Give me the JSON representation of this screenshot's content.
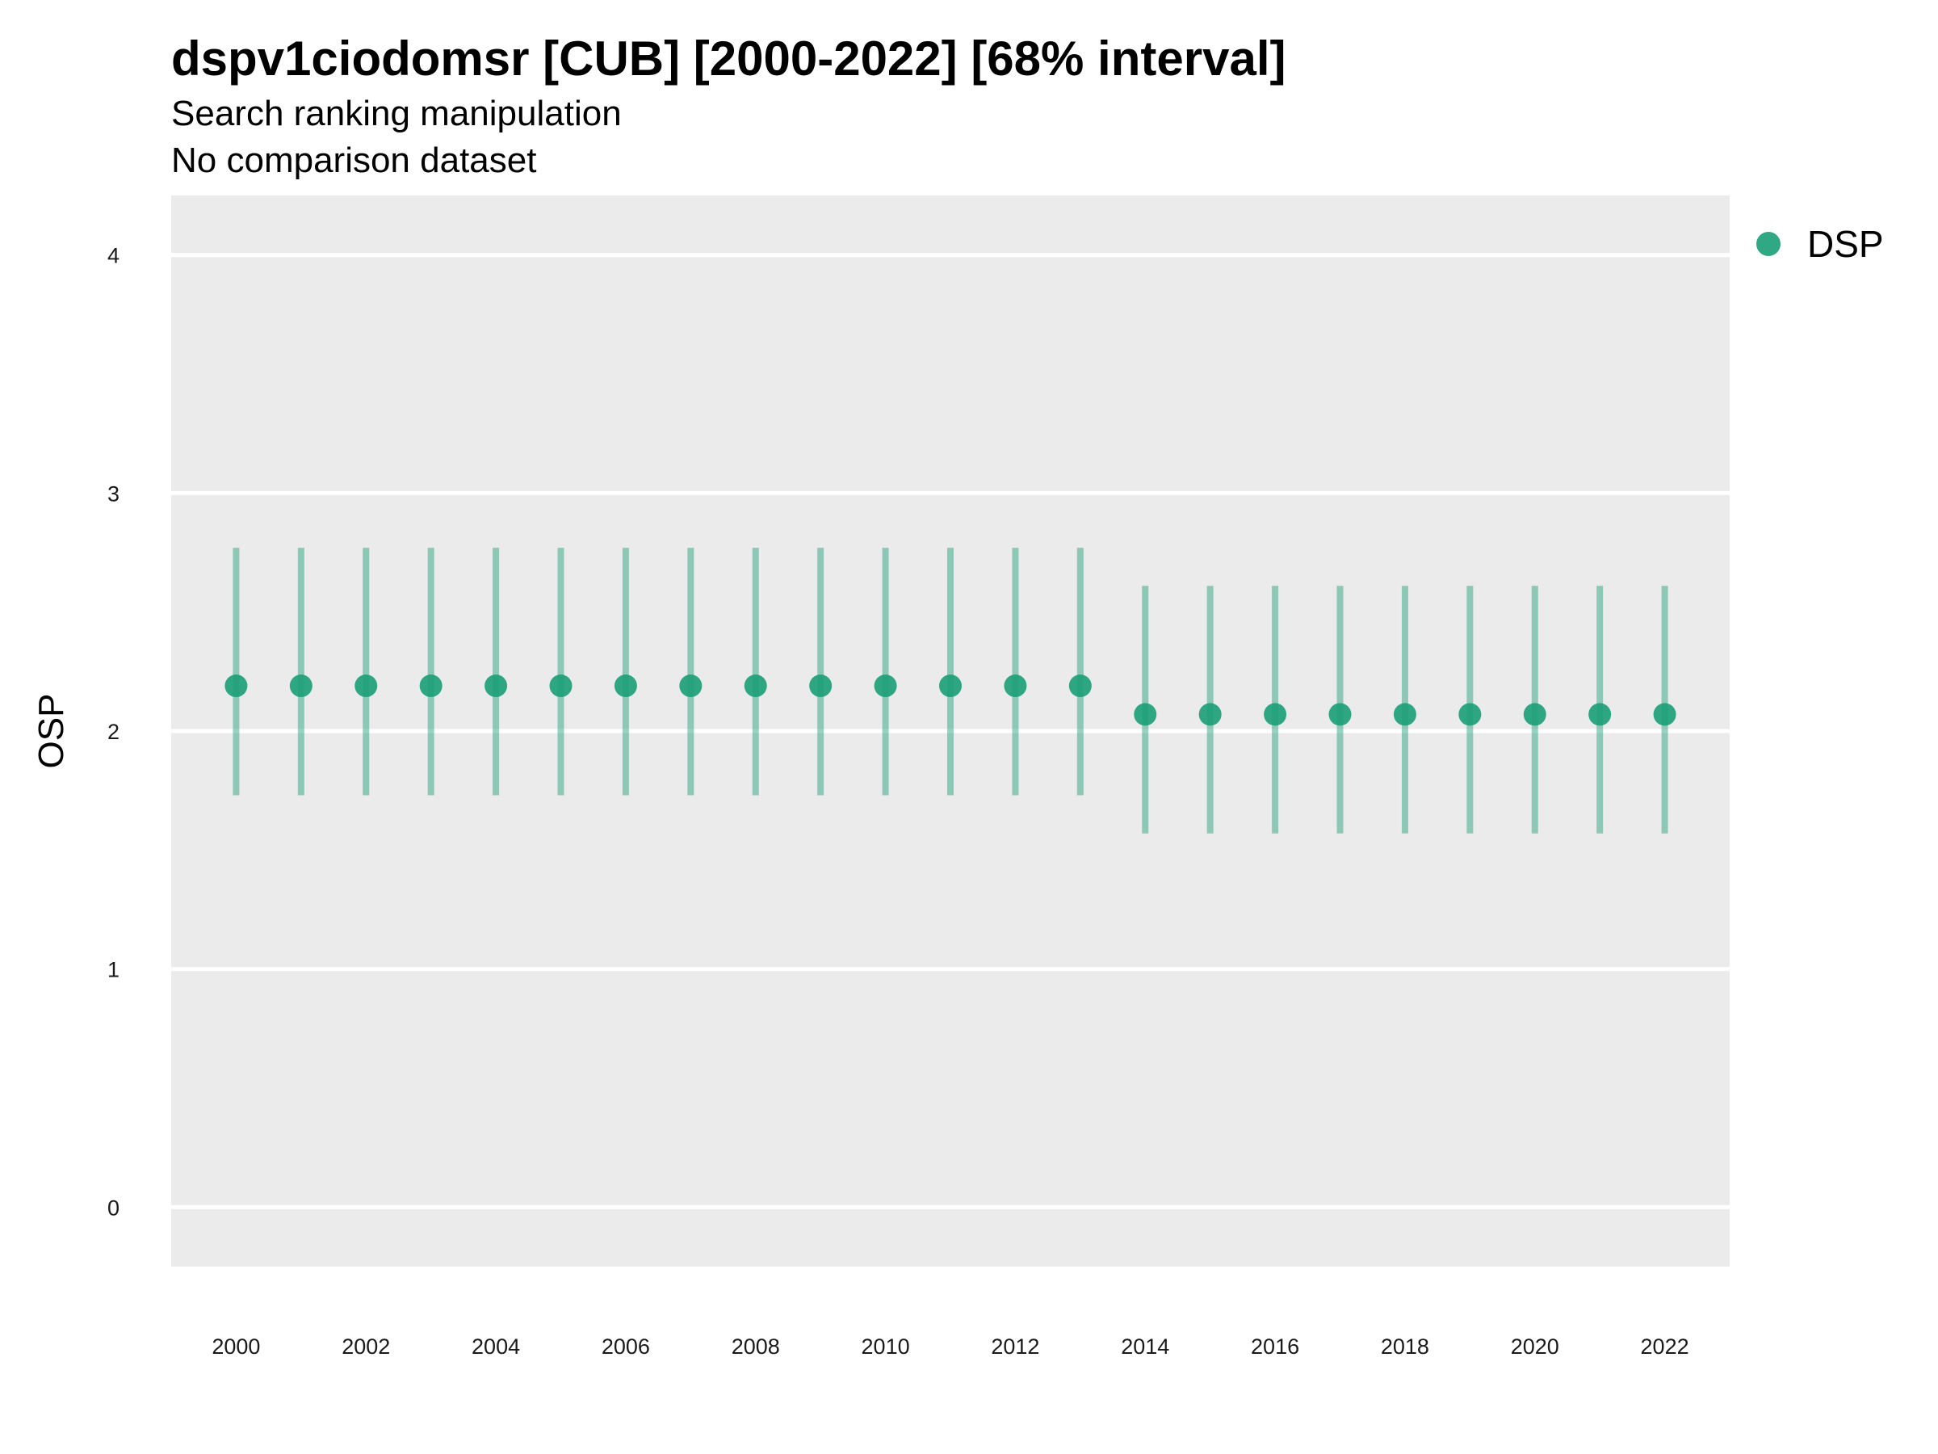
{
  "title": "dspv1ciodomsr [CUB] [2000-2022] [68% interval]",
  "subtitle": "Search ranking manipulation",
  "subtitle2": "No comparison dataset",
  "chart_data": {
    "type": "scatter",
    "ylabel": "OSP",
    "xlabel": "",
    "ylim": [
      -0.25,
      4.25
    ],
    "yticks": [
      0,
      1,
      2,
      3,
      4
    ],
    "xticks": [
      2000,
      2002,
      2004,
      2006,
      2008,
      2010,
      2012,
      2014,
      2016,
      2018,
      2020,
      2022
    ],
    "xlim": [
      1999,
      2023
    ],
    "grid": true,
    "legend_position": "right",
    "series": [
      {
        "name": "DSP",
        "color": "#1b9e77",
        "x": [
          2000,
          2001,
          2002,
          2003,
          2004,
          2005,
          2006,
          2007,
          2008,
          2009,
          2010,
          2011,
          2012,
          2013,
          2014,
          2015,
          2016,
          2017,
          2018,
          2019,
          2020,
          2021,
          2022
        ],
        "y": [
          2.19,
          2.19,
          2.19,
          2.19,
          2.19,
          2.19,
          2.19,
          2.19,
          2.19,
          2.19,
          2.19,
          2.19,
          2.19,
          2.19,
          2.07,
          2.07,
          2.07,
          2.07,
          2.07,
          2.07,
          2.07,
          2.07,
          2.07
        ],
        "lower": [
          1.73,
          1.73,
          1.73,
          1.73,
          1.73,
          1.73,
          1.73,
          1.73,
          1.73,
          1.73,
          1.73,
          1.73,
          1.73,
          1.73,
          1.57,
          1.57,
          1.57,
          1.57,
          1.57,
          1.57,
          1.57,
          1.57,
          1.57
        ],
        "upper": [
          2.77,
          2.77,
          2.77,
          2.77,
          2.77,
          2.77,
          2.77,
          2.77,
          2.77,
          2.77,
          2.77,
          2.77,
          2.77,
          2.77,
          2.61,
          2.61,
          2.61,
          2.61,
          2.61,
          2.61,
          2.61,
          2.61,
          2.61
        ]
      }
    ]
  }
}
